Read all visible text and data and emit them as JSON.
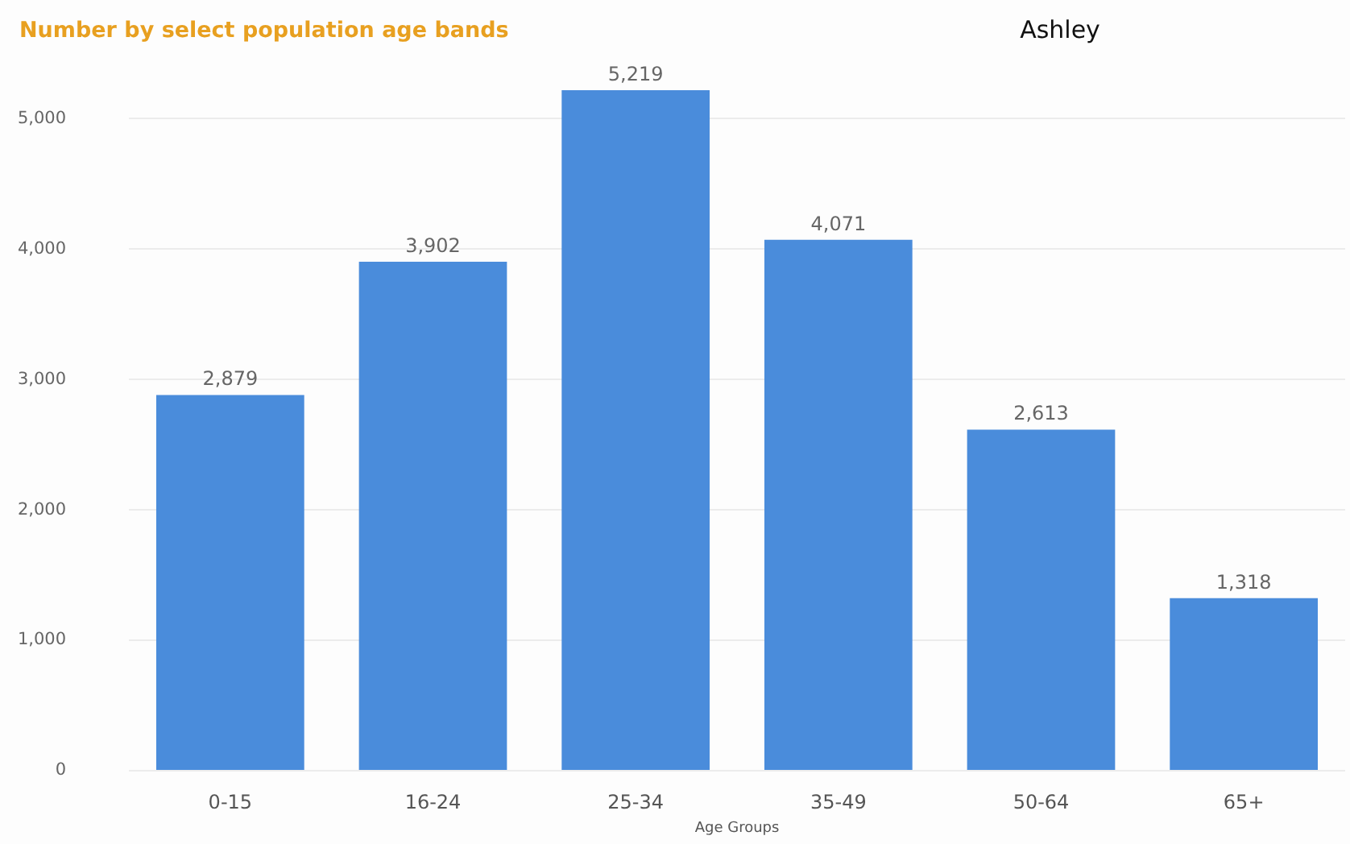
{
  "chart_data": {
    "type": "bar",
    "title": "Number by select population age bands",
    "subtitle": "Ashley",
    "xlabel": "Age Groups",
    "categories": [
      "0-15",
      "16-24",
      "25-34",
      "35-49",
      "50-64",
      "65+"
    ],
    "values": [
      2879,
      3902,
      5219,
      4071,
      2613,
      1318
    ],
    "color": "#4a8cdb",
    "value_labels": [
      "2,879",
      "3,902",
      "5,219",
      "4,071",
      "2,613",
      "1,318"
    ],
    "ylim": [
      0,
      5219
    ],
    "yticks": [
      {
        "value": 0,
        "label": "0"
      },
      {
        "value": 1000,
        "label": "1,000"
      },
      {
        "value": 2000,
        "label": "2,000"
      },
      {
        "value": 3000,
        "label": "3,000"
      },
      {
        "value": 4000,
        "label": "4,000"
      },
      {
        "value": 5000,
        "label": "5,000"
      }
    ],
    "grid": "y"
  }
}
